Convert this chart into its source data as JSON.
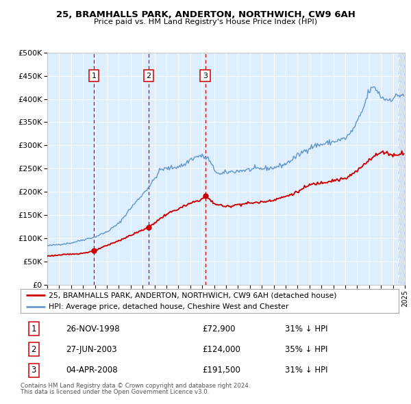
{
  "title1": "25, BRAMHALLS PARK, ANDERTON, NORTHWICH, CW9 6AH",
  "title2": "Price paid vs. HM Land Registry's House Price Index (HPI)",
  "legend_line1": "25, BRAMHALLS PARK, ANDERTON, NORTHWICH, CW9 6AH (detached house)",
  "legend_line2": "HPI: Average price, detached house, Cheshire West and Chester",
  "footer1": "Contains HM Land Registry data © Crown copyright and database right 2024.",
  "footer2": "This data is licensed under the Open Government Licence v3.0.",
  "transactions": [
    {
      "num": 1,
      "date": "26-NOV-1998",
      "price": 72900,
      "price_str": "£72,900",
      "pct": "31% ↓ HPI",
      "x_year": 1998.9
    },
    {
      "num": 2,
      "date": "27-JUN-2003",
      "price": 124000,
      "price_str": "£124,000",
      "pct": "35% ↓ HPI",
      "x_year": 2003.5
    },
    {
      "num": 3,
      "date": "04-APR-2008",
      "price": 191500,
      "price_str": "£191,500",
      "pct": "31% ↓ HPI",
      "x_year": 2008.25
    }
  ],
  "red_color": "#cc0000",
  "blue_color": "#6699cc",
  "bg_color": "#ddeeff",
  "grid_color": "#ffffff",
  "ylim": [
    0,
    500000
  ],
  "xlim_start": 1995,
  "xlim_end": 2025,
  "hatch_start": 2024.5
}
